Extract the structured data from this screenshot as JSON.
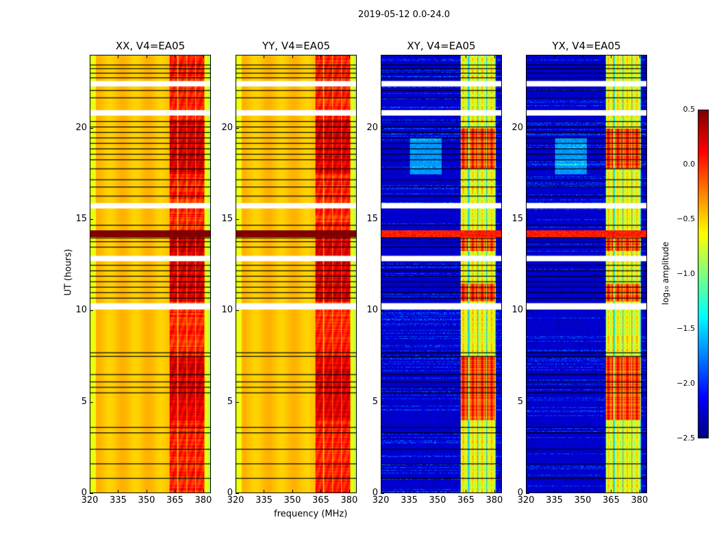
{
  "chart_data": {
    "type": "heatmap",
    "title": "2019-05-12 0.0-24.0",
    "xlabel": "frequency (MHz)",
    "ylabel": "UT (hours)",
    "xlim": [
      320,
      384
    ],
    "ylim": [
      0,
      24
    ],
    "xticks": [
      "320",
      "335",
      "350",
      "365",
      "380"
    ],
    "yticks": [
      "0",
      "5",
      "10",
      "15",
      "20"
    ],
    "panels": [
      {
        "title": "XX, V4=EA05",
        "kind": "auto"
      },
      {
        "title": "YY, V4=EA05",
        "kind": "auto"
      },
      {
        "title": "XY, V4=EA05",
        "kind": "cross"
      },
      {
        "title": "YX, V4=EA05",
        "kind": "cross"
      }
    ],
    "band_mhz": [
      362,
      381
    ],
    "flagged_gaps_hours": [
      [
        22.3,
        22.6
      ],
      [
        20.7,
        21.0
      ],
      [
        15.6,
        15.9
      ],
      [
        12.7,
        13.0
      ],
      [
        10.05,
        10.4
      ]
    ],
    "bright_band_hours": [
      14.05,
      14.4
    ],
    "black_line_hours": [
      23.5,
      23.3,
      23.05,
      22.8,
      22.1,
      21.7,
      20.4,
      20.1,
      19.8,
      19.5,
      19.2,
      18.9,
      18.6,
      18.3,
      17.8,
      17.2,
      16.8,
      16.3,
      14.7,
      14.0,
      13.8,
      13.5,
      12.5,
      12.2,
      11.9,
      11.6,
      11.3,
      11.0,
      10.7,
      7.7,
      7.5,
      6.5,
      6.1,
      5.8,
      5.5,
      3.6,
      3.3,
      2.4,
      1.6,
      0.8
    ],
    "colorbar": {
      "label": "log₁₀ amplitude",
      "range": [
        -2.5,
        0.5
      ],
      "ticks": [
        "0.5",
        "0.0",
        "−0.5",
        "−1.0",
        "−1.5",
        "−2.0",
        "−2.5"
      ],
      "colormap": "jet"
    }
  }
}
